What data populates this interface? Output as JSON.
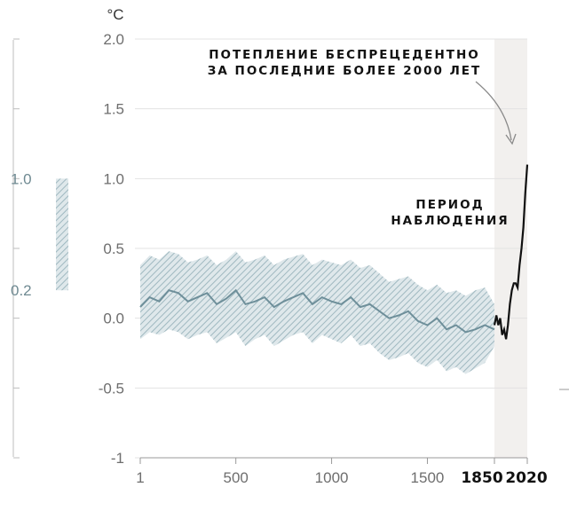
{
  "chart_data": {
    "type": "line",
    "unit": "°C",
    "ylim": [
      -1,
      2.0
    ],
    "ytick_labels": [
      "2.0",
      "1.5",
      "1.0",
      "0.5",
      "0.0",
      "-0.5",
      "-1"
    ],
    "xtick_labels": [
      "1",
      "500",
      "1000",
      "1500",
      "1850",
      "2020"
    ],
    "xlim": [
      1,
      2020
    ],
    "grid": "horizontal",
    "annotations": {
      "unprecedented": [
        "ПОТЕПЛЕНИЕ БЕСПРЕЦЕДЕНТНО",
        "ЗА ПОСЛЕДНИЕ БОЛЕЕ 2000 ЛЕТ"
      ],
      "observed": [
        "ПЕРИОД",
        "НАБЛЮДЕНИЯ"
      ]
    },
    "observed_period": [
      1850,
      2020
    ],
    "side_range": {
      "labels": [
        "1.0",
        "0.2"
      ],
      "values": [
        1.0,
        0.2
      ]
    },
    "series": [
      {
        "kind": "reconstruction",
        "color": "#6e8f9a",
        "band_color": "#a9c0c8",
        "x": [
          1,
          50,
          100,
          150,
          200,
          250,
          300,
          350,
          400,
          450,
          500,
          550,
          600,
          650,
          700,
          750,
          800,
          850,
          900,
          950,
          1000,
          1050,
          1100,
          1150,
          1200,
          1250,
          1300,
          1350,
          1400,
          1450,
          1500,
          1550,
          1600,
          1650,
          1700,
          1750,
          1800,
          1850
        ],
        "y": [
          0.08,
          0.15,
          0.12,
          0.2,
          0.18,
          0.12,
          0.15,
          0.18,
          0.1,
          0.14,
          0.2,
          0.1,
          0.12,
          0.15,
          0.08,
          0.12,
          0.15,
          0.18,
          0.1,
          0.15,
          0.12,
          0.1,
          0.15,
          0.08,
          0.1,
          0.05,
          0.0,
          0.02,
          0.05,
          -0.02,
          -0.05,
          0.0,
          -0.08,
          -0.05,
          -0.1,
          -0.08,
          -0.05,
          -0.08
        ],
        "low": [
          -0.15,
          -0.1,
          -0.12,
          -0.08,
          -0.1,
          -0.15,
          -0.12,
          -0.1,
          -0.18,
          -0.14,
          -0.1,
          -0.2,
          -0.15,
          -0.12,
          -0.2,
          -0.16,
          -0.12,
          -0.1,
          -0.18,
          -0.12,
          -0.15,
          -0.18,
          -0.12,
          -0.2,
          -0.18,
          -0.25,
          -0.3,
          -0.28,
          -0.25,
          -0.32,
          -0.35,
          -0.3,
          -0.38,
          -0.35,
          -0.4,
          -0.36,
          -0.32,
          -0.2
        ]
      },
      {
        "kind": "reconstruction_upper",
        "high": [
          0.38,
          0.45,
          0.42,
          0.48,
          0.46,
          0.4,
          0.42,
          0.45,
          0.38,
          0.42,
          0.48,
          0.4,
          0.42,
          0.45,
          0.38,
          0.42,
          0.44,
          0.46,
          0.38,
          0.42,
          0.4,
          0.38,
          0.42,
          0.36,
          0.38,
          0.32,
          0.26,
          0.28,
          0.3,
          0.24,
          0.2,
          0.24,
          0.18,
          0.2,
          0.16,
          0.2,
          0.22,
          0.1
        ]
      },
      {
        "kind": "observed",
        "color": "#111111",
        "x": [
          1850,
          1860,
          1870,
          1880,
          1890,
          1900,
          1910,
          1920,
          1930,
          1940,
          1950,
          1960,
          1970,
          1980,
          1990,
          2000,
          2010,
          2020
        ],
        "y": [
          -0.05,
          0.02,
          -0.05,
          0.0,
          -0.12,
          -0.08,
          -0.15,
          -0.05,
          0.1,
          0.2,
          0.25,
          0.25,
          0.22,
          0.38,
          0.5,
          0.65,
          0.9,
          1.1
        ]
      }
    ]
  }
}
